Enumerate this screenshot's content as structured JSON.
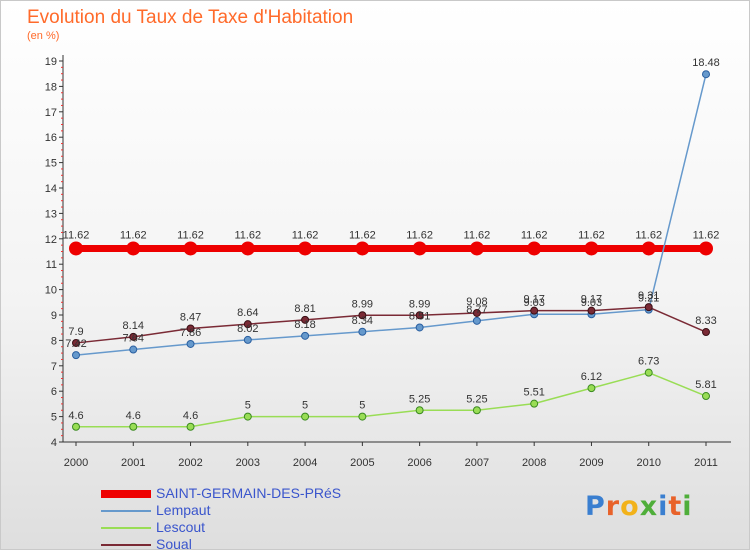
{
  "title": "Evolution du Taux de Taxe d'Habitation",
  "subtitle": "(en %)",
  "logo_text": "Proxiti",
  "chart_data": {
    "type": "line",
    "title": "Evolution du Taux de Taxe d'Habitation",
    "ylabel": "(en %)",
    "x": [
      "2000",
      "2001",
      "2002",
      "2003",
      "2004",
      "2005",
      "2006",
      "2007",
      "2008",
      "2009",
      "2010",
      "2011"
    ],
    "ylim": [
      4,
      19
    ],
    "yticks": [
      "4",
      "5",
      "6",
      "7",
      "8",
      "9",
      "10",
      "11",
      "12",
      "13",
      "14",
      "15",
      "16",
      "17",
      "18",
      "19"
    ],
    "grid": false,
    "legend": "bottom-left",
    "series": [
      {
        "name": "SAINT-GERMAIN-DES-PRéS",
        "color": "#ee0000",
        "values": [
          11.62,
          11.62,
          11.62,
          11.62,
          11.62,
          11.62,
          11.62,
          11.62,
          11.62,
          11.62,
          11.62,
          11.62
        ],
        "labels": [
          "11.62",
          "11.62",
          "11.62",
          "11.62",
          "11.62",
          "11.62",
          "11.62",
          "11.62",
          "11.62",
          "11.62",
          "11.62",
          "11.62"
        ]
      },
      {
        "name": "Lempaut",
        "color": "#6699cc",
        "values": [
          7.42,
          7.64,
          7.86,
          8.02,
          8.18,
          8.34,
          8.51,
          8.77,
          9.03,
          9.03,
          9.21,
          18.48
        ],
        "labels": [
          "7.42",
          "7.64",
          "7.86",
          "8.02",
          "8.18",
          "8.34",
          "8.51",
          "8.77",
          "9.03",
          "9.03",
          "9.21",
          "18.48"
        ]
      },
      {
        "name": "Lescout",
        "color": "#99dd55",
        "values": [
          4.6,
          4.6,
          4.6,
          5,
          5,
          5,
          5.25,
          5.25,
          5.51,
          6.12,
          6.73,
          5.81
        ],
        "labels": [
          "4.6",
          "4.6",
          "4.6",
          "5",
          "5",
          "5",
          "5.25",
          "5.25",
          "5.51",
          "6.12",
          "6.73",
          "5.81"
        ]
      },
      {
        "name": "Soual",
        "color": "#7a2a35",
        "values": [
          7.9,
          8.14,
          8.47,
          8.64,
          8.81,
          8.99,
          8.99,
          9.08,
          9.17,
          9.17,
          9.31,
          8.33
        ],
        "labels": [
          "7.9",
          "8.14",
          "8.47",
          "8.64",
          "8.81",
          "8.99",
          "8.99",
          "9.08",
          "9.17",
          "9.17",
          "9.31",
          "8.33"
        ]
      }
    ]
  }
}
